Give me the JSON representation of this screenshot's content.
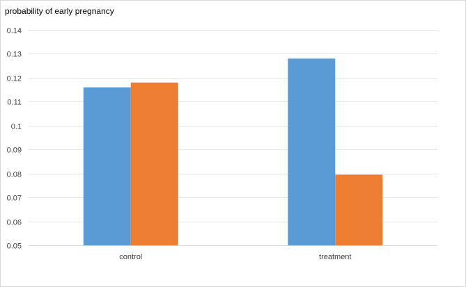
{
  "chart_data": {
    "type": "bar",
    "title": "",
    "ylabel": "probability of early pregnancy",
    "xlabel": "",
    "categories": [
      "control",
      "treatment"
    ],
    "ylim": [
      0.05,
      0.14
    ],
    "ytick_step": 0.01,
    "yticks": [
      "0.05",
      "0.06",
      "0.07",
      "0.08",
      "0.09",
      "0.1",
      "0.11",
      "0.12",
      "0.13",
      "0.14"
    ],
    "series": [
      {
        "color": "#5b9bd5",
        "values": [
          0.116,
          0.128
        ]
      },
      {
        "color": "#ed7d31",
        "values": [
          0.118,
          0.0795
        ]
      }
    ],
    "grid": true,
    "legend": "none"
  }
}
